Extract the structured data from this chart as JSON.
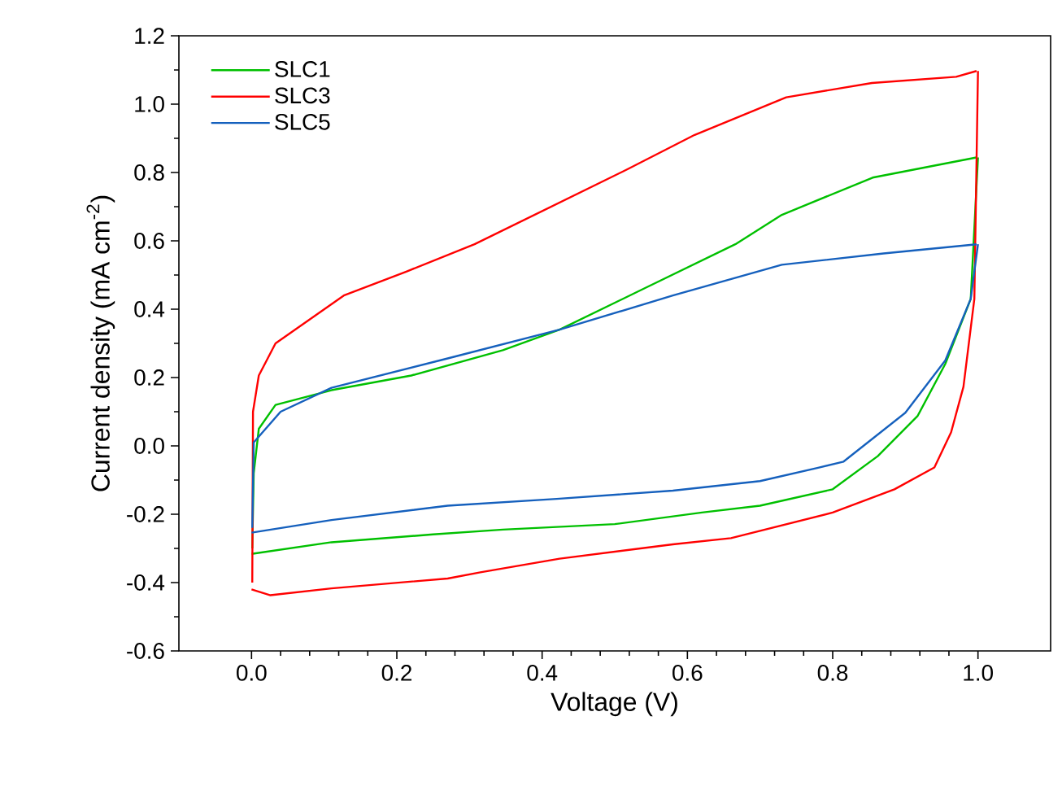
{
  "chart_data": {
    "type": "line",
    "xlabel": "Voltage (V)",
    "ylabel": "Current density (mA cm$^{-2}$)",
    "xlim": [
      -0.1,
      1.1
    ],
    "ylim": [
      -0.6,
      1.2
    ],
    "xticks": [
      {
        "value": 0,
        "label": "0.0"
      },
      {
        "value": 0.2,
        "label": "0.2"
      },
      {
        "value": 0.4,
        "label": "0.4"
      },
      {
        "value": 0.6,
        "label": "0.6"
      },
      {
        "value": 0.8,
        "label": "0.8"
      },
      {
        "value": 1,
        "label": "1.0"
      }
    ],
    "yticks": [
      {
        "value": -0.6,
        "label": "-0.6"
      },
      {
        "value": -0.4,
        "label": "-0.4"
      },
      {
        "value": -0.2,
        "label": "-0.2"
      },
      {
        "value": 0,
        "label": "0.0"
      },
      {
        "value": 0.2,
        "label": "0.2"
      },
      {
        "value": 0.4,
        "label": "0.4"
      },
      {
        "value": 0.6,
        "label": "0.6"
      },
      {
        "value": 0.8,
        "label": "0.8"
      },
      {
        "value": 1,
        "label": "1.0"
      },
      {
        "value": 1.2,
        "label": "1.2"
      }
    ],
    "legend": "top left",
    "marker": "none",
    "line_style": "solid",
    "series": [
      {
        "name": "SLC1",
        "color": "#00c000",
        "x": [
          0.001,
          0.003,
          0.01,
          0.033,
          0.11,
          0.22,
          0.346,
          0.424,
          0.54,
          0.666,
          0.73,
          0.855,
          0.998
        ],
        "values": [
          -0.3,
          -0.08,
          0.05,
          0.12,
          0.163,
          0.206,
          0.28,
          0.34,
          0.46,
          0.59,
          0.676,
          0.785,
          0.844
        ]
      },
      {
        "color": "#00c000",
        "x": [
          1.0,
          0.99,
          0.955,
          0.917,
          0.862,
          0.8,
          0.7,
          0.62,
          0.5,
          0.346,
          0.25,
          0.11,
          0
        ],
        "values": [
          0.844,
          0.43,
          0.24,
          0.088,
          -0.03,
          -0.127,
          -0.175,
          -0.195,
          -0.229,
          -0.245,
          -0.259,
          -0.282,
          -0.316
        ]
      },
      {
        "name": "SLC3",
        "color": "#ff0000",
        "x": [
          0.001,
          0.002,
          0.01,
          0.033,
          0.127,
          0.213,
          0.307,
          0.518,
          0.61,
          0.736,
          0.854,
          0.97,
          0.998
        ],
        "values": [
          -0.4,
          0.1,
          0.206,
          0.3,
          0.44,
          0.51,
          0.59,
          0.81,
          0.91,
          1.02,
          1.062,
          1.08,
          1.097
        ]
      },
      {
        "color": "#ff0000",
        "x": [
          1.0,
          0.995,
          0.98,
          0.963,
          0.94,
          0.885,
          0.8,
          0.66,
          0.58,
          0.424,
          0.315,
          0.27,
          0.11,
          0.026,
          0
        ],
        "values": [
          1.097,
          0.43,
          0.173,
          0.04,
          -0.063,
          -0.127,
          -0.195,
          -0.27,
          -0.288,
          -0.33,
          -0.37,
          -0.388,
          -0.417,
          -0.437,
          -0.42
        ]
      },
      {
        "name": "SLC5",
        "color": "#1560bd",
        "x": [
          0.001,
          0.003,
          0.04,
          0.11,
          0.27,
          0.424,
          0.58,
          0.73,
          0.87,
          0.998
        ],
        "values": [
          -0.24,
          0.01,
          0.1,
          0.17,
          0.256,
          0.34,
          0.44,
          0.53,
          0.563,
          0.59
        ]
      },
      {
        "color": "#1560bd",
        "x": [
          1.0,
          0.99,
          0.955,
          0.9,
          0.815,
          0.78,
          0.7,
          0.58,
          0.42,
          0.27,
          0.11,
          0
        ],
        "values": [
          0.59,
          0.43,
          0.25,
          0.097,
          -0.046,
          -0.064,
          -0.103,
          -0.131,
          -0.155,
          -0.175,
          -0.217,
          -0.254
        ]
      }
    ]
  }
}
